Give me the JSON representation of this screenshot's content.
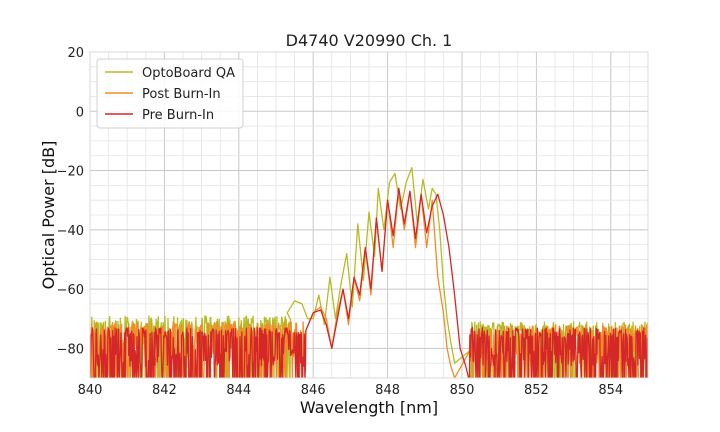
{
  "chart_data": {
    "type": "line",
    "title": "D4740 V20990 Ch. 1",
    "xlabel": "Wavelength [nm]",
    "ylabel": "Optical Power [dB]",
    "xlim": [
      840,
      855
    ],
    "ylim": [
      -90,
      20
    ],
    "xticks": [
      840,
      842,
      844,
      846,
      848,
      850,
      852,
      854
    ],
    "yticks": [
      20,
      0,
      -20,
      -40,
      -60,
      -80
    ],
    "grid": true,
    "legend_position": "top-left",
    "series": [
      {
        "name": "OptoBoard QA",
        "color": "#b5bd24",
        "noise_floor": {
          "range": [
            840,
            845.4
          ],
          "level": -76
        },
        "x": [
          845.3,
          845.5,
          845.7,
          845.85,
          846.0,
          846.15,
          846.3,
          846.45,
          846.6,
          846.75,
          846.9,
          847.05,
          847.2,
          847.35,
          847.5,
          847.65,
          847.75,
          847.9,
          848.05,
          848.2,
          848.35,
          848.5,
          848.65,
          848.8,
          848.95,
          849.1,
          849.2,
          849.3,
          849.4,
          849.5,
          849.6,
          849.7,
          849.8
        ],
        "y": [
          -68,
          -64,
          -65,
          -70,
          -70,
          -62,
          -72,
          -56,
          -70,
          -58,
          -48,
          -66,
          -38,
          -57,
          -34,
          -49,
          -26,
          -40,
          -24,
          -21,
          -33,
          -24,
          -19,
          -38,
          -23,
          -33,
          -26,
          -28,
          -40,
          -58,
          -70,
          -78,
          -85
        ]
      },
      {
        "name": "Post Burn-In",
        "color": "#f28c28",
        "noise_floor": {
          "range": [
            840,
            845.8
          ],
          "level": -78
        },
        "x": [
          845.8,
          846.0,
          846.2,
          846.35,
          846.5,
          846.65,
          846.8,
          846.95,
          847.1,
          847.25,
          847.4,
          847.55,
          847.7,
          847.85,
          848.0,
          848.15,
          848.3,
          848.45,
          848.6,
          848.75,
          848.9,
          849.05,
          849.2,
          849.35,
          849.5,
          849.6,
          849.7,
          849.8
        ],
        "y": [
          -74,
          -68,
          -66,
          -70,
          -80,
          -68,
          -60,
          -72,
          -56,
          -64,
          -46,
          -62,
          -36,
          -54,
          -30,
          -46,
          -26,
          -40,
          -27,
          -46,
          -28,
          -46,
          -30,
          -56,
          -68,
          -80,
          -86,
          -90
        ]
      },
      {
        "name": "Pre Burn-In",
        "color": "#d62728",
        "noise_floor": {
          "range": [
            840,
            845.8
          ],
          "level": -80
        },
        "x": [
          845.8,
          846.0,
          846.2,
          846.35,
          846.5,
          846.65,
          846.8,
          846.95,
          847.1,
          847.25,
          847.4,
          847.55,
          847.7,
          847.85,
          848.0,
          848.15,
          848.3,
          848.45,
          848.6,
          848.75,
          848.9,
          849.05,
          849.2,
          849.35,
          849.5,
          849.65,
          849.8,
          849.95,
          850.1
        ],
        "y": [
          -74,
          -68,
          -67,
          -72,
          -80,
          -70,
          -60,
          -70,
          -56,
          -62,
          -46,
          -60,
          -36,
          -54,
          -30,
          -42,
          -26,
          -38,
          -27,
          -43,
          -28,
          -41,
          -32,
          -28,
          -35,
          -46,
          -62,
          -80,
          -86
        ]
      }
    ],
    "noise_right": {
      "range": [
        850.2,
        855
      ],
      "level": -78
    }
  }
}
